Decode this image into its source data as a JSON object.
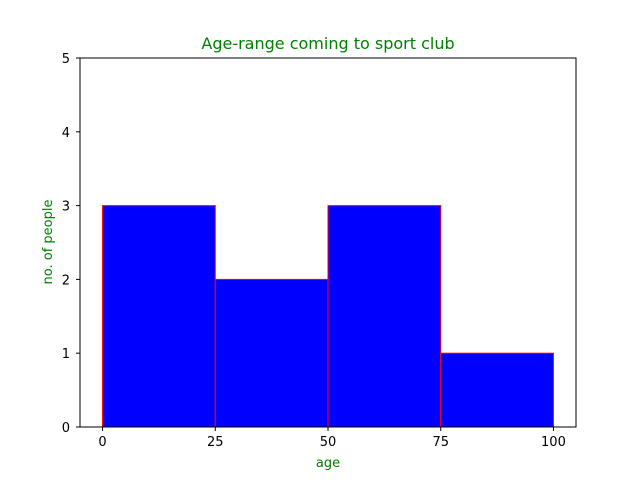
{
  "chart_data": {
    "type": "bar",
    "title": "Age-range coming to sport club",
    "xlabel": "age",
    "ylabel": "no. of people",
    "bins": [
      {
        "start": 0,
        "end": 25,
        "value": 3
      },
      {
        "start": 25,
        "end": 50,
        "value": 2
      },
      {
        "start": 50,
        "end": 75,
        "value": 3
      },
      {
        "start": 75,
        "end": 100,
        "value": 1
      }
    ],
    "xlim": [
      -5,
      105
    ],
    "ylim": [
      0,
      5
    ],
    "xticks": [
      0,
      25,
      50,
      75,
      100
    ],
    "yticks": [
      0,
      1,
      2,
      3,
      4,
      5
    ],
    "grid": false,
    "colors": {
      "bar_fill": "#0000ff",
      "bar_edge": "#ff0000",
      "label_color": "#008000",
      "axis_color": "#000000"
    }
  }
}
